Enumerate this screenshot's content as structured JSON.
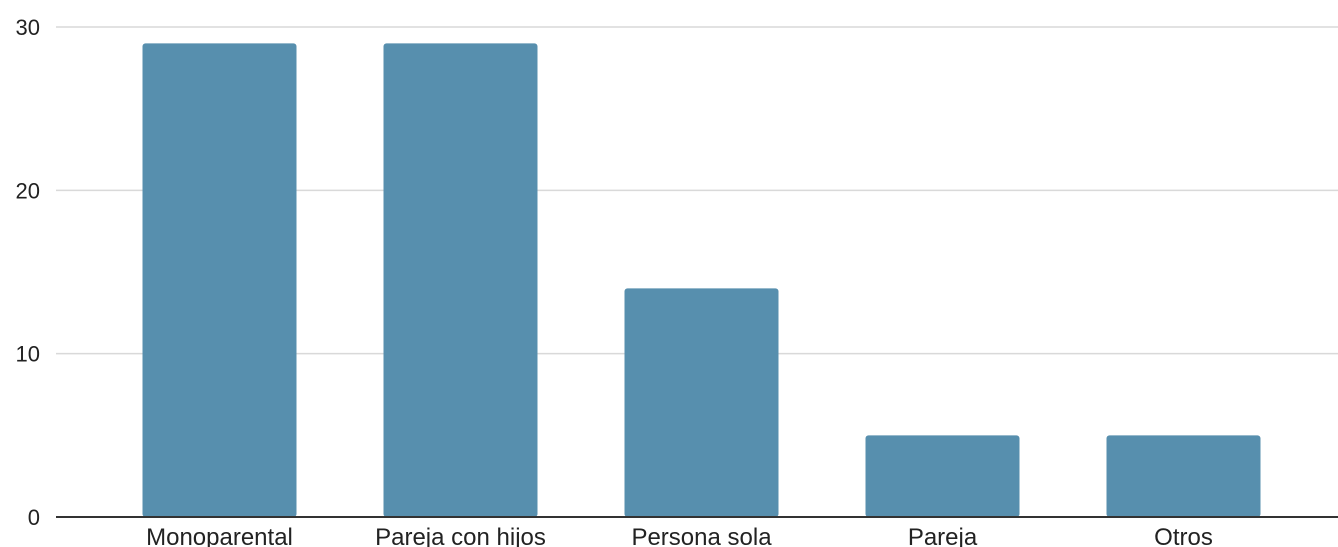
{
  "chart_data": {
    "type": "bar",
    "categories": [
      "Monoparental",
      "Pareja con hijos",
      "Persona sola",
      "Pareja",
      "Otros"
    ],
    "values": [
      29,
      29,
      14,
      5,
      5
    ],
    "ylim": [
      0,
      30
    ],
    "yticks": [
      0,
      10,
      20,
      30
    ],
    "grid": true,
    "legend": "none",
    "colors": {
      "bar": "#578fae",
      "grid": "#d9d9d9",
      "axis": "#333333"
    }
  }
}
